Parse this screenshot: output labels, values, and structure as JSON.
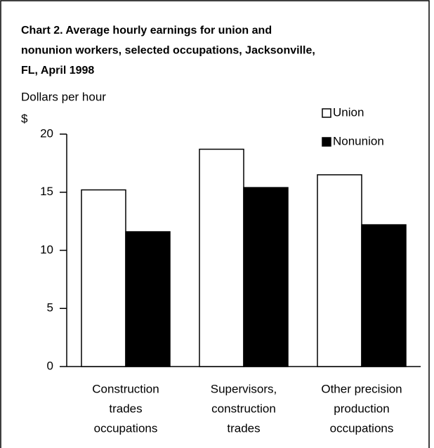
{
  "chart_data": {
    "type": "bar",
    "title": [
      "Chart 2. Average hourly earnings for union and",
      "nonunion workers, selected occupations, Jacksonville,",
      "FL, April 1998"
    ],
    "y_label": "Dollars per hour",
    "y_unit": "$",
    "categories": [
      [
        "Construction",
        "trades",
        "occupations"
      ],
      [
        "Supervisors,",
        "construction",
        "trades"
      ],
      [
        "Other precision",
        "production",
        "occupations"
      ]
    ],
    "series": [
      {
        "name": "Union",
        "color": "#ffffff",
        "values": [
          15.2,
          18.7,
          16.5
        ]
      },
      {
        "name": "Nonunion",
        "color": "#000000",
        "values": [
          11.6,
          15.4,
          12.2
        ]
      }
    ],
    "ylim": [
      0,
      20
    ],
    "yticks": [
      0,
      5,
      10,
      15,
      20
    ],
    "grid": false,
    "legend": "top-right"
  }
}
